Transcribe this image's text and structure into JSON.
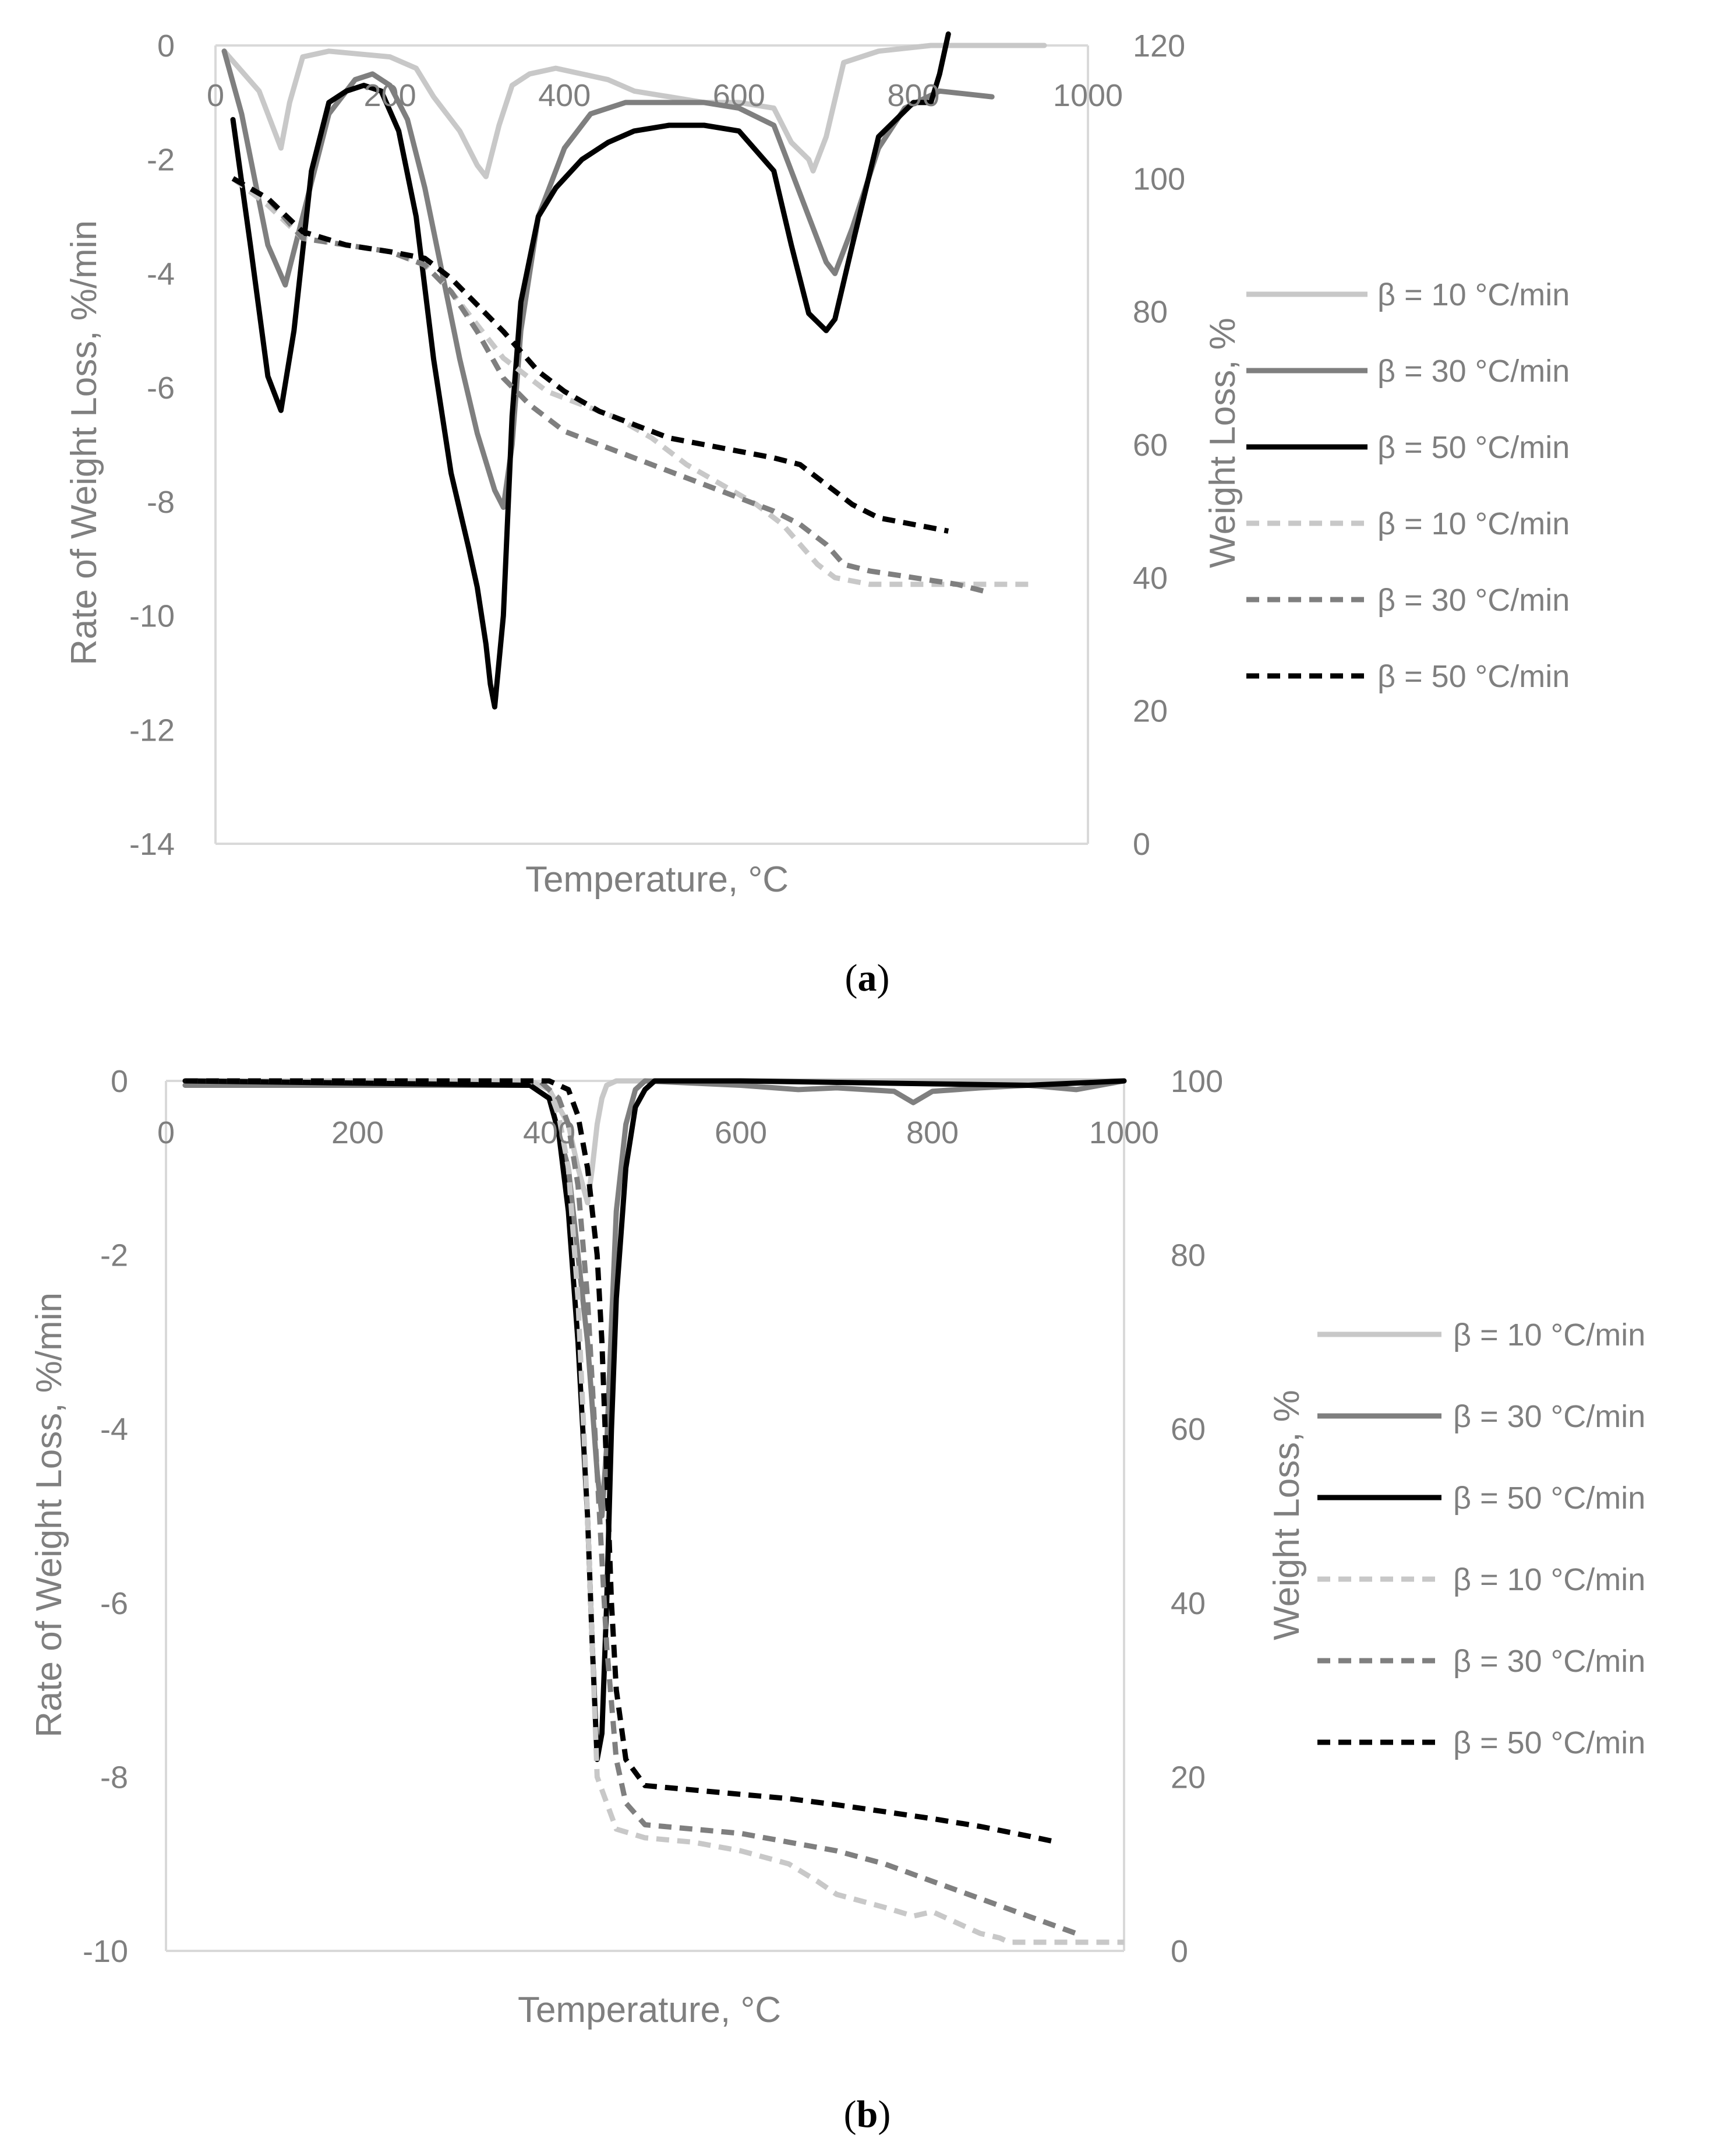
{
  "colors": {
    "axis": "#d9d9d9",
    "text": "#7f7f7f",
    "light": "#c8c8c8",
    "medium": "#7f7f7f",
    "dark": "#000000"
  },
  "chart_data": [
    {
      "id": "a",
      "caption": "a",
      "type": "line",
      "xlabel": "Temperature, °C",
      "ylabel": "Rate of Weight Loss, %/min",
      "y2label": "Weight Loss, %",
      "xlim": [
        0,
        1000
      ],
      "ylim": [
        -14,
        0
      ],
      "y2lim": [
        0,
        120
      ],
      "xticks": [
        "0",
        "200",
        "400",
        "600",
        "800",
        "1000"
      ],
      "yticks": [
        "0",
        "-2",
        "-4",
        "-6",
        "-8",
        "-10",
        "-12",
        "-14"
      ],
      "y2ticks": [
        "120",
        "100",
        "80",
        "60",
        "40",
        "20",
        "0"
      ],
      "series": [
        {
          "name": "β = 10 °C/min",
          "axis": "left",
          "style": "solid",
          "tone": "light",
          "x": [
            10,
            50,
            75,
            85,
            100,
            130,
            200,
            230,
            250,
            280,
            300,
            310,
            325,
            340,
            360,
            390,
            420,
            450,
            480,
            520,
            560,
            600,
            640,
            660,
            680,
            685,
            700,
            720,
            760,
            820,
            950
          ],
          "y": [
            -0.1,
            -0.8,
            -1.8,
            -1.0,
            -0.2,
            -0.1,
            -0.2,
            -0.4,
            -0.9,
            -1.5,
            -2.1,
            -2.3,
            -1.4,
            -0.7,
            -0.5,
            -0.4,
            -0.5,
            -0.6,
            -0.8,
            -0.9,
            -1.0,
            -1.0,
            -1.1,
            -1.7,
            -2.0,
            -2.2,
            -1.6,
            -0.3,
            -0.1,
            0,
            0
          ]
        },
        {
          "name": "β = 30 °C/min",
          "axis": "left",
          "style": "solid",
          "tone": "medium",
          "x": [
            10,
            30,
            60,
            80,
            100,
            130,
            160,
            180,
            200,
            220,
            240,
            260,
            280,
            300,
            320,
            330,
            340,
            350,
            370,
            400,
            430,
            470,
            520,
            560,
            600,
            640,
            660,
            680,
            700,
            710,
            730,
            760,
            790,
            830,
            890
          ],
          "y": [
            -0.1,
            -1.2,
            -3.5,
            -4.2,
            -3.0,
            -1.2,
            -0.6,
            -0.5,
            -0.7,
            -1.3,
            -2.5,
            -4.0,
            -5.5,
            -6.8,
            -7.8,
            -8.1,
            -7.0,
            -5.0,
            -3.0,
            -1.8,
            -1.2,
            -1.0,
            -1.0,
            -1.0,
            -1.1,
            -1.4,
            -2.2,
            -3.0,
            -3.8,
            -4.0,
            -3.2,
            -1.8,
            -1.1,
            -0.8,
            -0.9
          ]
        },
        {
          "name": "β = 50 °C/min",
          "axis": "left",
          "style": "solid",
          "tone": "dark",
          "x": [
            20,
            40,
            60,
            75,
            90,
            110,
            130,
            150,
            170,
            190,
            210,
            230,
            250,
            270,
            290,
            300,
            310,
            315,
            320,
            330,
            340,
            350,
            370,
            390,
            420,
            450,
            480,
            520,
            560,
            600,
            640,
            660,
            680,
            700,
            710,
            730,
            760,
            800,
            820,
            830,
            840
          ],
          "y": [
            -1.3,
            -3.5,
            -5.8,
            -6.4,
            -5.0,
            -2.2,
            -1.0,
            -0.8,
            -0.7,
            -0.8,
            -1.5,
            -3.0,
            -5.5,
            -7.5,
            -8.8,
            -9.5,
            -10.5,
            -11.2,
            -11.6,
            -10.0,
            -6.5,
            -4.5,
            -3.0,
            -2.5,
            -2.0,
            -1.7,
            -1.5,
            -1.4,
            -1.4,
            -1.5,
            -2.2,
            -3.5,
            -4.7,
            -5.0,
            -4.8,
            -3.5,
            -1.6,
            -1.0,
            -1.0,
            -0.5,
            0.2
          ]
        },
        {
          "name": "β = 10 °C/min",
          "axis": "right",
          "style": "dashed",
          "tone": "light",
          "x": [
            20,
            60,
            100,
            150,
            200,
            240,
            270,
            300,
            330,
            350,
            380,
            420,
            460,
            500,
            540,
            580,
            620,
            650,
            670,
            690,
            710,
            750,
            800,
            850,
            940
          ],
          "y": [
            100,
            96,
            91,
            90,
            89,
            87,
            83,
            78,
            73,
            71,
            68,
            66,
            64,
            61,
            57,
            54,
            51,
            48,
            45,
            42,
            40,
            39,
            39,
            39,
            39
          ]
        },
        {
          "name": "β = 30 °C/min",
          "axis": "right",
          "style": "dashed",
          "tone": "medium",
          "x": [
            20,
            60,
            100,
            150,
            200,
            240,
            270,
            300,
            330,
            360,
            400,
            440,
            480,
            520,
            560,
            600,
            640,
            670,
            700,
            720,
            750,
            800,
            850,
            880
          ],
          "y": [
            100,
            97,
            91,
            90,
            89,
            87,
            83,
            77,
            70,
            66,
            62,
            60,
            58,
            56,
            54,
            52,
            50,
            48,
            45,
            42,
            41,
            40,
            39,
            38
          ]
        },
        {
          "name": "β = 50 °C/min",
          "axis": "right",
          "style": "dashed",
          "tone": "dark",
          "x": [
            20,
            60,
            100,
            150,
            200,
            240,
            270,
            300,
            330,
            350,
            370,
            400,
            440,
            480,
            520,
            560,
            600,
            640,
            670,
            690,
            710,
            730,
            760,
            800,
            840
          ],
          "y": [
            100,
            97,
            92,
            90,
            89,
            88,
            85,
            81,
            77,
            74,
            71,
            68,
            65,
            63,
            61,
            60,
            59,
            58,
            57,
            55,
            53,
            51,
            49,
            48,
            47
          ]
        }
      ]
    },
    {
      "id": "b",
      "caption": "b",
      "type": "line",
      "xlabel": "Temperature, °C",
      "ylabel": "Rate of Weight Loss, %/min",
      "y2label": "Weight Loss, %",
      "xlim": [
        0,
        1000
      ],
      "ylim": [
        -10,
        0
      ],
      "y2lim": [
        0,
        100
      ],
      "xticks": [
        "0",
        "200",
        "400",
        "600",
        "800",
        "1000"
      ],
      "yticks": [
        "0",
        "-2",
        "-4",
        "-6",
        "-8",
        "-10"
      ],
      "y2ticks": [
        "100",
        "80",
        "60",
        "40",
        "20",
        "0"
      ],
      "series": [
        {
          "name": "β = 10 °C/min",
          "axis": "left",
          "style": "solid",
          "tone": "light",
          "x": [
            20,
            380,
            400,
            420,
            430,
            440,
            445,
            450,
            455,
            460,
            470,
            480,
            500,
            1000
          ],
          "y": [
            0,
            0,
            -0.1,
            -0.5,
            -1.0,
            -1.4,
            -1.0,
            -0.5,
            -0.2,
            -0.05,
            0,
            0,
            0,
            0
          ]
        },
        {
          "name": "β = 30 °C/min",
          "axis": "left",
          "style": "solid",
          "tone": "medium",
          "x": [
            20,
            100,
            200,
            300,
            380,
            400,
            420,
            440,
            450,
            455,
            460,
            465,
            470,
            480,
            490,
            500,
            600,
            660,
            700,
            760,
            780,
            800,
            850,
            900,
            950,
            1000
          ],
          "y": [
            -0.05,
            -0.05,
            -0.05,
            -0.05,
            -0.05,
            -0.2,
            -1.0,
            -3.0,
            -4.5,
            -5.0,
            -4.2,
            -2.8,
            -1.5,
            -0.5,
            -0.1,
            0,
            -0.05,
            -0.1,
            -0.08,
            -0.12,
            -0.25,
            -0.12,
            -0.08,
            -0.05,
            -0.1,
            0
          ]
        },
        {
          "name": "β = 50 °C/min",
          "axis": "left",
          "style": "solid",
          "tone": "dark",
          "x": [
            20,
            380,
            400,
            410,
            420,
            430,
            440,
            445,
            450,
            455,
            460,
            465,
            470,
            480,
            490,
            500,
            510,
            520,
            600,
            900,
            1000
          ],
          "y": [
            0,
            -0.05,
            -0.2,
            -0.6,
            -1.5,
            -3.0,
            -5.0,
            -6.5,
            -7.8,
            -7.5,
            -6.0,
            -4.0,
            -2.5,
            -1.0,
            -0.3,
            -0.1,
            0,
            0,
            0,
            -0.05,
            0
          ]
        },
        {
          "name": "β = 10 °C/min",
          "axis": "right",
          "style": "dashed",
          "tone": "light",
          "x": [
            20,
            380,
            400,
            410,
            420,
            430,
            440,
            445,
            450,
            470,
            500,
            550,
            600,
            650,
            680,
            700,
            750,
            780,
            800,
            830,
            850,
            870,
            880,
            900,
            1000
          ],
          "y": [
            100,
            100,
            99,
            96,
            90,
            75,
            50,
            35,
            20,
            14,
            13,
            12.5,
            11.5,
            10,
            8,
            6.5,
            5,
            4,
            4.5,
            3,
            2,
            1.5,
            1,
            1,
            1
          ]
        },
        {
          "name": "β = 30 °C/min",
          "axis": "right",
          "style": "dashed",
          "tone": "medium",
          "x": [
            20,
            390,
            410,
            420,
            430,
            440,
            450,
            460,
            470,
            480,
            500,
            550,
            600,
            650,
            700,
            750,
            800,
            850,
            900,
            950
          ],
          "y": [
            100,
            100,
            98,
            95,
            88,
            75,
            55,
            35,
            22,
            17,
            14.5,
            14,
            13.5,
            12.5,
            11.5,
            10,
            8,
            6,
            4,
            2
          ]
        },
        {
          "name": "β = 50 °C/min",
          "axis": "right",
          "style": "dashed",
          "tone": "dark",
          "x": [
            20,
            400,
            420,
            430,
            440,
            450,
            455,
            460,
            465,
            470,
            480,
            500,
            550,
            600,
            650,
            700,
            750,
            800,
            850,
            900,
            930
          ],
          "y": [
            100,
            100,
            99,
            96,
            90,
            80,
            70,
            55,
            40,
            30,
            22,
            19,
            18.5,
            18,
            17.5,
            16.8,
            16,
            15.2,
            14.3,
            13.2,
            12.5
          ]
        }
      ]
    }
  ]
}
